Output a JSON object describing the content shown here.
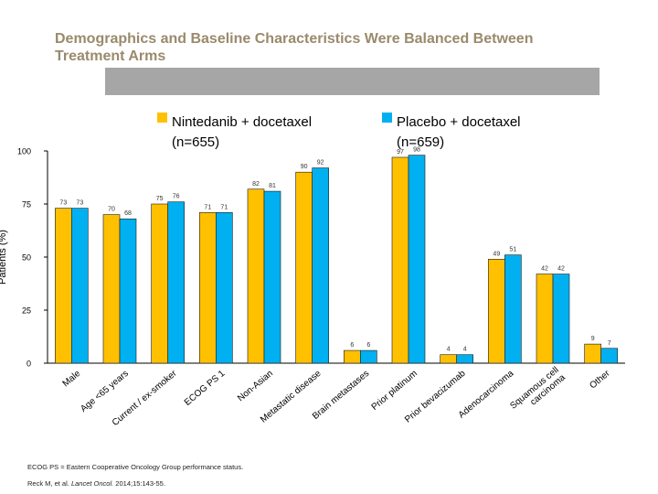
{
  "slide": {
    "title": "Demographics and Baseline Characteristics Were Balanced Between Treatment Arms",
    "footnote_1": "ECOG PS = Eastern Cooperative Oncology Group performance status.",
    "footnote_2_prefix": "Reck M, et al. ",
    "footnote_2_journal": "Lancet Oncol.",
    "footnote_2_suffix": " 2014;15:143-55."
  },
  "colors": {
    "nintedanib": "#ffc000",
    "placebo": "#00b0f0",
    "title": "#9a8a6c",
    "bar_band": "#a6a6a6"
  },
  "chart_data": {
    "type": "bar",
    "ylabel": "Patients (%)",
    "xlabel": "",
    "ylim": [
      0,
      100
    ],
    "yticks": [
      0,
      25,
      50,
      75,
      100
    ],
    "legend_position": "top",
    "categories": [
      "Male",
      "Age <65 years",
      "Current / ex-smoker",
      "ECOG PS 1",
      "Non-Asian",
      "Metastatic disease",
      "Brain metastases",
      "Prior platinum",
      "Prior bevacizumab",
      "Adenocarcinoma",
      "Squamous cell carcinoma",
      "Other"
    ],
    "category_lines": [
      [
        "Male"
      ],
      [
        "Age <65 years"
      ],
      [
        "Current / ex-smoker"
      ],
      [
        "ECOG PS 1"
      ],
      [
        "Non-Asian"
      ],
      [
        "Metastatic disease"
      ],
      [
        "Brain metastases"
      ],
      [
        "Prior platinum"
      ],
      [
        "Prior bevacizumab"
      ],
      [
        "Adenocarcinoma"
      ],
      [
        "Squamous cell",
        "carcinoma"
      ],
      [
        "Other"
      ]
    ],
    "series": [
      {
        "name_line1": "Nintedanib + docetaxel",
        "name_line2": "(n=655)",
        "color": "#ffc000",
        "values": [
          73,
          70,
          75,
          71,
          82,
          90,
          6,
          97,
          4,
          49,
          42,
          9
        ]
      },
      {
        "name_line1": "Placebo + docetaxel",
        "name_line2": "(n=659)",
        "color": "#00b0f0",
        "values": [
          73,
          68,
          76,
          71,
          81,
          92,
          6,
          98,
          4,
          51,
          42,
          7
        ]
      }
    ]
  }
}
